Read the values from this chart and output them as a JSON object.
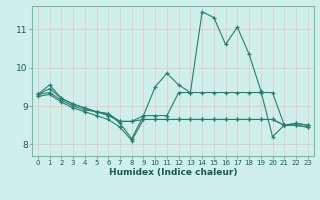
{
  "xlabel": "Humidex (Indice chaleur)",
  "bg_color": "#cff0ea",
  "line_color": "#2a7d6e",
  "grid_color": "#e8c8c8",
  "xlim": [
    -0.5,
    23.5
  ],
  "ylim": [
    7.7,
    11.6
  ],
  "yticks": [
    8,
    9,
    10,
    11
  ],
  "xticks": [
    0,
    1,
    2,
    3,
    4,
    5,
    6,
    7,
    8,
    9,
    10,
    11,
    12,
    13,
    14,
    15,
    16,
    17,
    18,
    19,
    20,
    21,
    22,
    23
  ],
  "lines": [
    {
      "x": [
        0,
        1,
        2,
        3,
        4,
        5,
        6,
        7,
        8,
        9,
        10,
        11,
        12,
        13,
        14,
        15,
        16,
        17,
        18,
        19,
        20,
        21,
        22,
        23
      ],
      "y": [
        9.3,
        9.55,
        9.2,
        9.05,
        8.95,
        8.85,
        8.8,
        8.55,
        8.15,
        8.75,
        9.5,
        9.85,
        9.55,
        9.35,
        11.45,
        11.3,
        10.6,
        11.05,
        10.35,
        9.4,
        8.2,
        8.5,
        8.55,
        8.5
      ]
    },
    {
      "x": [
        0,
        1,
        2,
        3,
        4,
        5,
        6,
        7,
        8,
        9,
        10,
        11,
        12,
        13,
        14,
        15,
        16,
        17,
        18,
        19,
        20,
        21,
        22,
        23
      ],
      "y": [
        9.3,
        9.45,
        9.2,
        9.05,
        8.95,
        8.85,
        8.8,
        8.6,
        8.6,
        8.75,
        8.75,
        8.75,
        9.35,
        9.35,
        9.35,
        9.35,
        9.35,
        9.35,
        9.35,
        9.35,
        9.35,
        8.5,
        8.55,
        8.5
      ]
    },
    {
      "x": [
        0,
        1,
        2,
        3,
        4,
        5,
        6,
        7,
        8,
        9,
        10,
        11,
        12,
        13,
        14,
        15,
        16,
        17,
        18,
        19,
        20,
        21,
        22,
        23
      ],
      "y": [
        9.3,
        9.35,
        9.15,
        9.0,
        8.9,
        8.85,
        8.75,
        8.6,
        8.6,
        8.65,
        8.65,
        8.65,
        8.65,
        8.65,
        8.65,
        8.65,
        8.65,
        8.65,
        8.65,
        8.65,
        8.65,
        8.5,
        8.5,
        8.45
      ]
    },
    {
      "x": [
        0,
        1,
        2,
        3,
        4,
        5,
        6,
        7,
        8,
        9,
        10,
        11,
        12,
        13,
        14,
        15,
        16,
        17,
        18,
        19,
        20,
        21,
        22,
        23
      ],
      "y": [
        9.25,
        9.3,
        9.1,
        8.95,
        8.85,
        8.75,
        8.65,
        8.45,
        8.1,
        8.65,
        8.65,
        8.65,
        8.65,
        8.65,
        8.65,
        8.65,
        8.65,
        8.65,
        8.65,
        8.65,
        8.65,
        8.5,
        8.5,
        8.45
      ]
    }
  ]
}
